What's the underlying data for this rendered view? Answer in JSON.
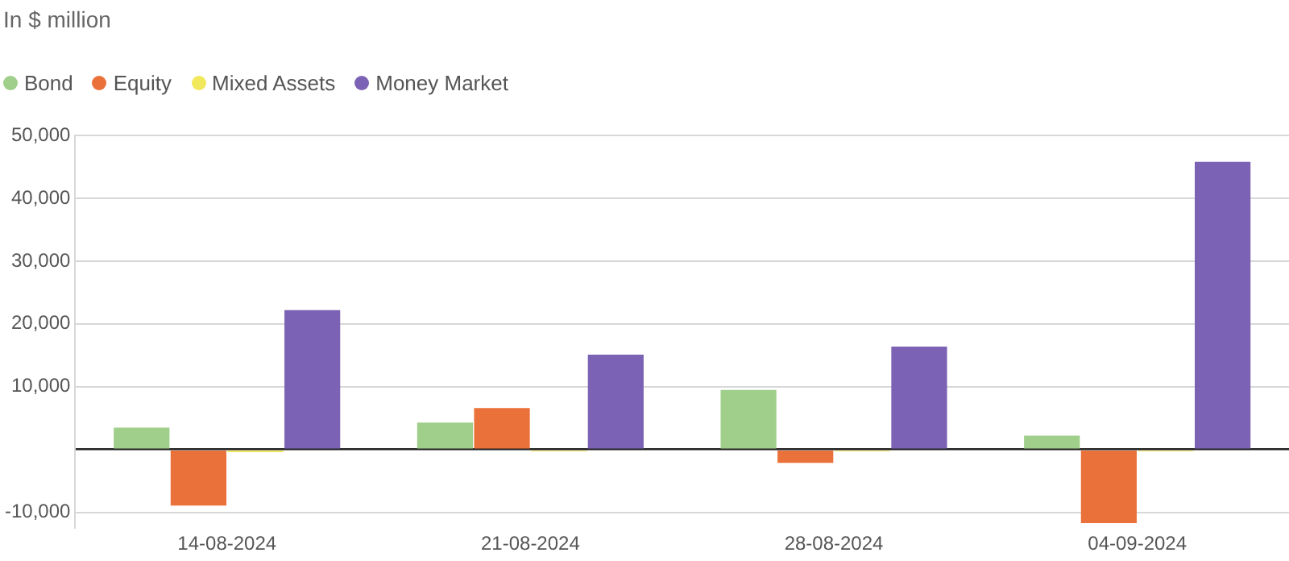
{
  "chart_data": {
    "type": "bar",
    "subtitle": "In $ million",
    "categories": [
      "14-08-2024",
      "21-08-2024",
      "28-08-2024",
      "04-09-2024"
    ],
    "series": [
      {
        "name": "Bond",
        "color": "#9fcf8a",
        "values": [
          3500,
          4300,
          9500,
          2200
        ]
      },
      {
        "name": "Equity",
        "color": "#ea7139",
        "values": [
          -8900,
          6600,
          -2100,
          -11700
        ]
      },
      {
        "name": "Mixed Assets",
        "color": "#f2e85c",
        "values": [
          -400,
          -300,
          -300,
          -300
        ]
      },
      {
        "name": "Money Market",
        "color": "#7b62b4",
        "values": [
          22200,
          15100,
          16400,
          45800
        ]
      }
    ],
    "ylim": [
      -12500,
      50000
    ],
    "yticks": [
      {
        "value": -10000,
        "label": "-10,000"
      },
      {
        "value": 0,
        "label": null
      },
      {
        "value": 10000,
        "label": "10,000"
      },
      {
        "value": 20000,
        "label": "20,000"
      },
      {
        "value": 30000,
        "label": "30,000"
      },
      {
        "value": 40000,
        "label": "40,000"
      },
      {
        "value": 50000,
        "label": "50,000"
      }
    ],
    "grid": "y",
    "legend": "top left"
  }
}
